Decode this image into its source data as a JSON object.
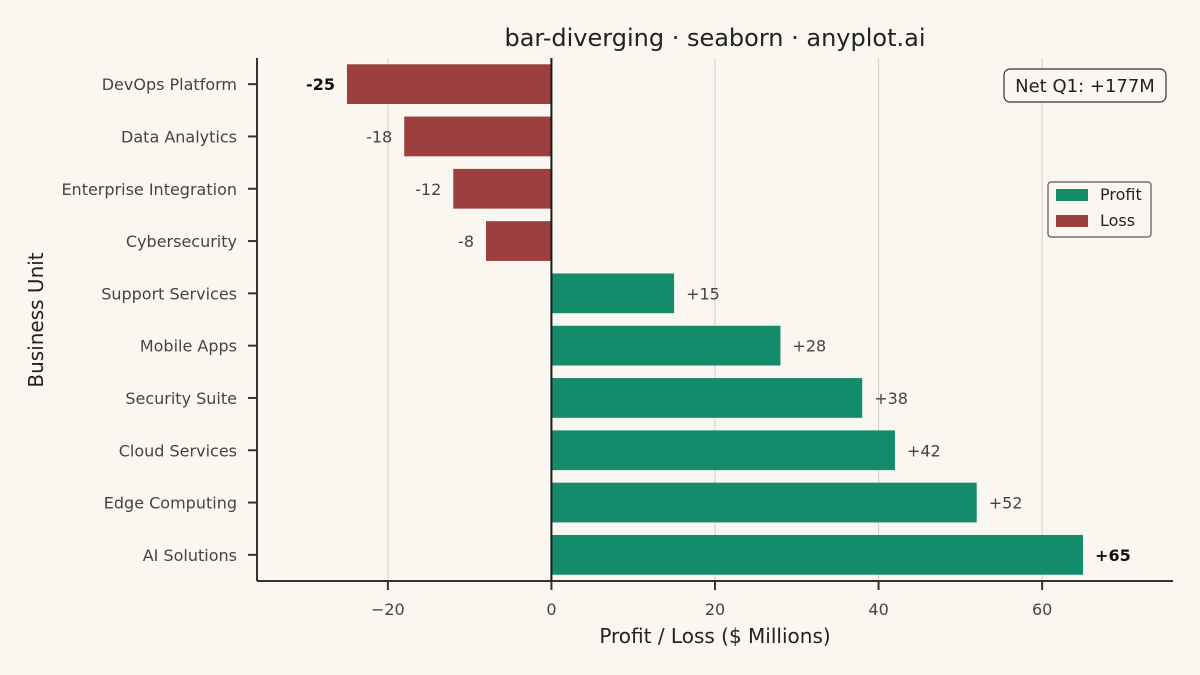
{
  "chart_data": {
    "type": "bar",
    "orientation": "horizontal",
    "title": "bar-diverging · seaborn · anyplot.ai",
    "xlabel": "Profit / Loss ($ Millions)",
    "ylabel": "Business Unit",
    "xlim": [
      -36,
      76
    ],
    "xticks": [
      -20,
      0,
      20,
      40,
      60
    ],
    "xtick_labels": [
      "−20",
      "0",
      "20",
      "40",
      "60"
    ],
    "grid": "vertical",
    "categories": [
      "DevOps Platform",
      "Data Analytics",
      "Enterprise Integration",
      "Cybersecurity",
      "Support Services",
      "Mobile Apps",
      "Security Suite",
      "Cloud Services",
      "Edge Computing",
      "AI Solutions"
    ],
    "values": [
      -25,
      -18,
      -12,
      -8,
      15,
      28,
      38,
      42,
      52,
      65
    ],
    "value_labels": [
      "-25",
      "-18",
      "-12",
      "-8",
      "+15",
      "+28",
      "+38",
      "+42",
      "+52",
      "+65"
    ],
    "bold_labels": [
      true,
      false,
      false,
      false,
      false,
      false,
      false,
      false,
      false,
      true
    ],
    "legend": {
      "placement": "upper-right",
      "items": [
        {
          "name": "Profit",
          "color": "#148b6b"
        },
        {
          "name": "Loss",
          "color": "#9e3f3f"
        }
      ]
    },
    "annotation": "Net Q1: +177M",
    "colors": {
      "profit": "#148b6b",
      "loss": "#9e3f3f"
    }
  }
}
